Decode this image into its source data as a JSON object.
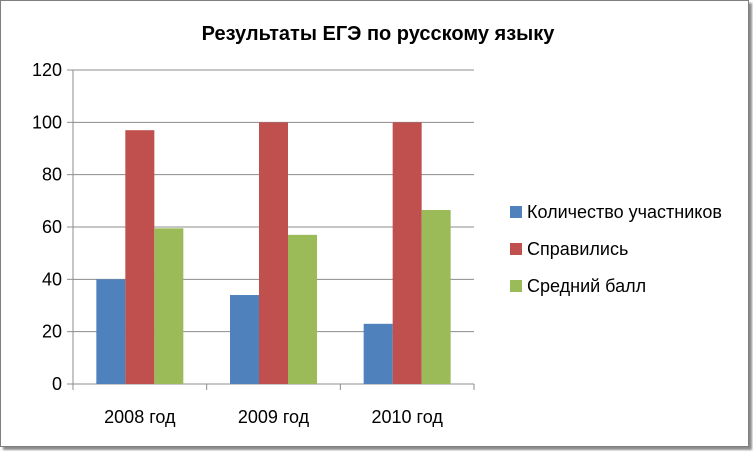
{
  "chart_data": {
    "type": "bar",
    "title": "Результаты ЕГЭ по русскому языку",
    "xlabel": "",
    "ylabel": "",
    "categories": [
      "2008 год",
      "2009 год",
      "2010 год"
    ],
    "series": [
      {
        "name": "Количество участников",
        "values": [
          40,
          34,
          23
        ],
        "color": "#4f81bd"
      },
      {
        "name": "Справились",
        "values": [
          97,
          100,
          100
        ],
        "color": "#c0504d"
      },
      {
        "name": "Средний балл",
        "values": [
          59.5,
          57,
          66.5
        ],
        "color": "#9bbb59"
      }
    ],
    "ylim": [
      0,
      120
    ],
    "yticks": [
      "0",
      "20",
      "40",
      "60",
      "80",
      "100",
      "120"
    ],
    "grid": true,
    "legend_position": "right"
  }
}
